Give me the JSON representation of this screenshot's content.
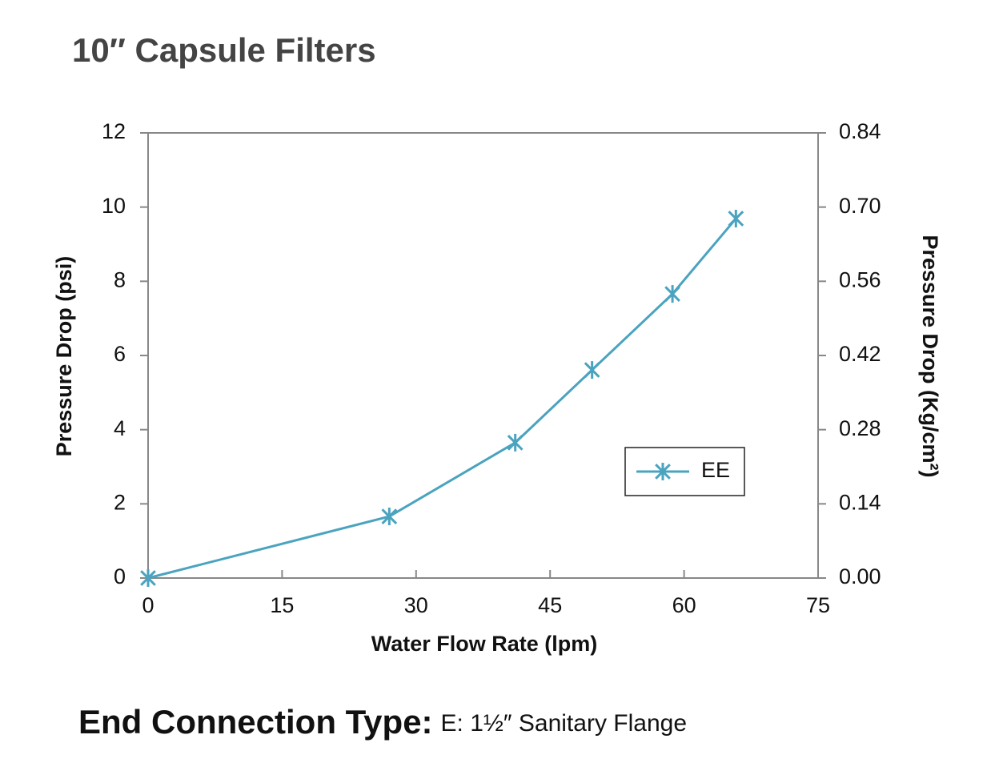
{
  "chart_data": {
    "type": "line",
    "title": "10″ Capsule Filters",
    "x_label": "Water Flow Rate (lpm)",
    "y_label": "Pressure Drop  (psi)",
    "y2_label": "Pressure Drop (Kg/cm²)",
    "x": [
      0,
      27,
      41.1,
      49.7,
      58.7,
      65.8
    ],
    "series": [
      {
        "name": "EE",
        "color": "#4aa3bf",
        "values": [
          0,
          1.66,
          3.65,
          5.61,
          7.66,
          9.69
        ]
      }
    ],
    "marker": "asterisk",
    "xlim": [
      0,
      75
    ],
    "xticks": [
      0,
      15,
      30,
      45,
      60,
      75
    ],
    "ylim": [
      0,
      12
    ],
    "yticks": [
      0,
      2,
      4,
      6,
      8,
      10,
      12
    ],
    "y2lim": [
      0,
      0.84
    ],
    "y2ticks": [
      {
        "value": 0,
        "label": "0.00"
      },
      0.14,
      {
        "value": 0.28,
        "label": "0.28"
      },
      {
        "value": 0.42,
        "label": "0.42"
      },
      {
        "value": 0.56,
        "label": "0.56"
      },
      {
        "value": 0.7,
        "label": "0.70"
      },
      0.84
    ],
    "legend": "right",
    "annotations": [
      "End Connection Type:",
      "E:  1½″ Sanitary Flange"
    ]
  }
}
